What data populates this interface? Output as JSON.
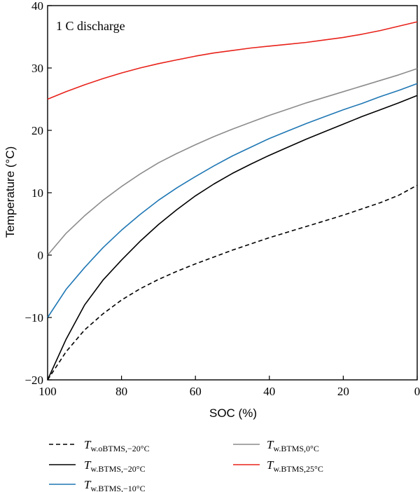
{
  "chart_data": {
    "type": "line",
    "annotation": "1 C discharge",
    "xlabel": "SOC (%)",
    "ylabel": "Temperature  (°C)",
    "xlim": [
      100,
      0
    ],
    "ylim": [
      -20,
      40
    ],
    "x_ticks": [
      100,
      80,
      60,
      40,
      20,
      0
    ],
    "y_ticks": [
      -20,
      -10,
      0,
      10,
      20,
      30,
      40
    ],
    "x_tick_labels": [
      "100",
      "80",
      "60",
      "40",
      "20",
      "0"
    ],
    "y_tick_labels": [
      "−20",
      "−10",
      "0",
      "10",
      "20",
      "30",
      "40"
    ],
    "grid": false,
    "legend_position": "below",
    "x": [
      100,
      95,
      90,
      85,
      80,
      75,
      70,
      65,
      60,
      55,
      50,
      45,
      40,
      35,
      30,
      25,
      20,
      15,
      10,
      5,
      0
    ],
    "series": [
      {
        "name": "Tw.oBTMS,−20°C",
        "name_main": "T",
        "name_sub": "w.oBTMS,−20°C",
        "color": "#000000",
        "dash": "dashed",
        "values": [
          -20,
          -15.5,
          -12,
          -9.4,
          -7.2,
          -5.4,
          -3.9,
          -2.6,
          -1.4,
          -0.3,
          0.8,
          1.8,
          2.8,
          3.7,
          4.6,
          5.5,
          6.4,
          7.4,
          8.4,
          9.6,
          11.2
        ]
      },
      {
        "name": "Tw.BTMS,−20°C",
        "name_main": "T",
        "name_sub": "w.BTMS,−20°C",
        "color": "#000000",
        "dash": "solid",
        "values": [
          -20,
          -13.5,
          -8,
          -4,
          -0.8,
          2.2,
          4.9,
          7.3,
          9.5,
          11.4,
          13.1,
          14.6,
          16,
          17.3,
          18.6,
          19.8,
          21,
          22.2,
          23.3,
          24.4,
          25.6
        ]
      },
      {
        "name": "Tw.BTMS,−10°C",
        "name_main": "T",
        "name_sub": "w.BTMS,−10°C",
        "color": "#1f77b4",
        "dash": "solid",
        "values": [
          -10,
          -5.5,
          -2,
          1.2,
          4,
          6.5,
          8.8,
          10.8,
          12.6,
          14.3,
          15.9,
          17.3,
          18.7,
          19.9,
          21.1,
          22.2,
          23.3,
          24.3,
          25.4,
          26.4,
          27.5
        ]
      },
      {
        "name": "Tw.BTMS,0°C",
        "name_main": "T",
        "name_sub": "w.BTMS,0°C",
        "color": "#8c8c8c",
        "dash": "solid",
        "values": [
          0,
          3.5,
          6.3,
          8.8,
          11,
          13,
          14.8,
          16.3,
          17.7,
          19,
          20.2,
          21.3,
          22.4,
          23.4,
          24.4,
          25.3,
          26.2,
          27.1,
          28,
          28.9,
          29.9
        ]
      },
      {
        "name": "Tw.BTMS,25°C",
        "name_main": "T",
        "name_sub": "w.BTMS,25°C",
        "color": "#e8221a",
        "dash": "solid",
        "values": [
          25,
          26.2,
          27.3,
          28.3,
          29.2,
          30,
          30.7,
          31.3,
          31.9,
          32.4,
          32.8,
          33.2,
          33.5,
          33.8,
          34.1,
          34.5,
          34.9,
          35.4,
          36,
          36.7,
          37.4
        ]
      }
    ]
  }
}
